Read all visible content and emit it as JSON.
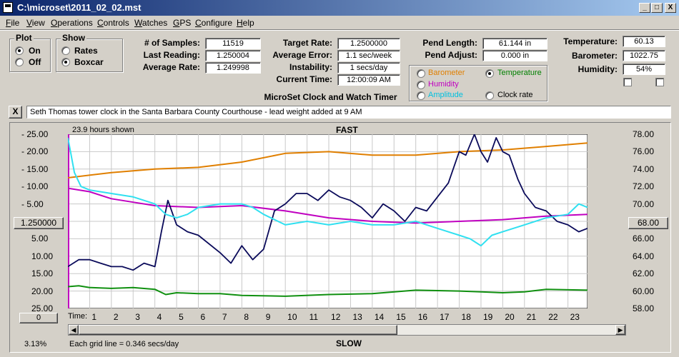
{
  "window": {
    "title": "C:\\microset\\2011_02_02.mst",
    "minimize": "_",
    "maximize": "□",
    "close": "X"
  },
  "menu": [
    "File",
    "View",
    "Operations",
    "Controls",
    "Watches",
    "GPS",
    "Configure",
    "Help"
  ],
  "plot_group": {
    "legend": "Plot",
    "options": [
      "On",
      "Off"
    ],
    "selected": "On"
  },
  "show_group": {
    "legend": "Show",
    "options": [
      "Rates",
      "Boxcar"
    ],
    "selected": "Boxcar"
  },
  "stats": {
    "samples_label": "# of Samples:",
    "samples": "11519",
    "last_label": "Last Reading:",
    "last": "1.250004",
    "avg_rate_label": "Average Rate:",
    "avg_rate": "1.249998"
  },
  "timing": {
    "target_label": "Target Rate:",
    "target": "1.2500000",
    "avg_err_label": "Average Error:",
    "avg_err": "1.1 sec/week",
    "instab_label": "Instability:",
    "instab": "1 secs/day",
    "time_label": "Current Time:",
    "time": "12:00:09 AM"
  },
  "subtitle": "MicroSet Clock and Watch Timer",
  "pendulum": {
    "length_label": "Pend Length:",
    "length": "61.144 in",
    "adjust_label": "Pend Adjust:",
    "adjust": "0.000 in"
  },
  "series_select": {
    "options": [
      {
        "label": "Barometer",
        "color": "#e07f00",
        "checked": false
      },
      {
        "label": "Temperature",
        "color": "#008000",
        "checked": true
      },
      {
        "label": "Humidity",
        "color": "#c000c0",
        "checked": false
      },
      {
        "label": "Clock rate",
        "color": "#000000",
        "checked": false
      },
      {
        "label": "Amplitude",
        "color": "#00c0e0",
        "checked": false
      }
    ]
  },
  "env": {
    "temp_label": "Temperature:",
    "temp": "60.13",
    "baro_label": "Barometer:",
    "baro": "1022.75",
    "hum_label": "Humidity:",
    "hum": "54%"
  },
  "notes_close": "X",
  "notes": "Seth Thomas tower clock in the Santa Barbara County Courthouse - lead weight added at 9 AM",
  "chart": {
    "hours_shown": "23.9 hours shown",
    "top_label": "FAST",
    "bottom_label": "SLOW",
    "center_button": "1.250000",
    "right_button": "68.00",
    "zero_button": "0",
    "left_ticks": [
      "25.00",
      "20.00",
      "15.00",
      "10.00",
      "5.00",
      "5.00",
      "10.00",
      "15.00",
      "20.00",
      "25.00"
    ],
    "right_ticks": [
      "78.00",
      "76.00",
      "74.00",
      "72.00",
      "70.00",
      "66.00",
      "64.00",
      "62.00",
      "60.00",
      "58.00"
    ],
    "time_label": "Time:",
    "x_ticks": [
      "1",
      "2",
      "3",
      "4",
      "5",
      "6",
      "7",
      "8",
      "9",
      "10",
      "11",
      "12",
      "13",
      "14",
      "15",
      "16",
      "17",
      "18",
      "19",
      "20",
      "21",
      "22",
      "23"
    ],
    "percent": "3.13%",
    "grid_note": "Each grid line = 0.346 secs/day"
  },
  "chart_data": {
    "type": "line",
    "x_range": [
      0,
      23.9
    ],
    "y_left": [
      -25,
      25
    ],
    "y_right": [
      58,
      78
    ],
    "grid": true,
    "series": [
      {
        "name": "Barometer",
        "color": "#e07f00",
        "x": [
          0,
          2,
          4,
          6,
          8,
          10,
          12,
          14,
          16,
          18,
          20,
          22,
          23.9
        ],
        "y": [
          12.5,
          14,
          15,
          15.5,
          17,
          19.5,
          20,
          19,
          19,
          20,
          20.5,
          21.5,
          22.5
        ]
      },
      {
        "name": "Temperature",
        "color": "#109010",
        "x": [
          0,
          0.5,
          1,
          2,
          3,
          4,
          4.5,
          5,
          6,
          7,
          8,
          10,
          12,
          14,
          16,
          18,
          19,
          20,
          21,
          22,
          23.9
        ],
        "y": [
          60.5,
          60.6,
          60.4,
          60.3,
          60.4,
          60.2,
          59.6,
          59.8,
          59.7,
          59.7,
          59.5,
          59.4,
          59.6,
          59.7,
          60.1,
          60.0,
          59.9,
          59.8,
          59.9,
          60.2,
          60.1
        ]
      },
      {
        "name": "Humidity",
        "color": "#c000c0",
        "x": [
          0,
          1,
          2,
          3,
          4,
          6,
          8,
          10,
          12,
          14,
          16,
          18,
          20,
          22,
          23.9
        ],
        "y": [
          9.5,
          8.5,
          6.5,
          5.5,
          4.5,
          4,
          4.5,
          3,
          1,
          0,
          -0.5,
          0,
          0.5,
          1.5,
          2
        ]
      },
      {
        "name": "Clock rate",
        "color": "#0a0a5a",
        "x": [
          0,
          0.5,
          1,
          1.5,
          2,
          2.5,
          3,
          3.5,
          4,
          4.3,
          4.6,
          5,
          5.5,
          6,
          7,
          7.5,
          8,
          8.5,
          9,
          9.5,
          10,
          10.5,
          11,
          11.5,
          12,
          12.5,
          13,
          13.5,
          14,
          14.5,
          15,
          15.5,
          16,
          16.5,
          17,
          17.5,
          18,
          18.3,
          18.7,
          19,
          19.3,
          19.7,
          20,
          20.3,
          20.7,
          21,
          21.5,
          22,
          22.5,
          23,
          23.5,
          23.9
        ],
        "y": [
          -13,
          -11,
          -11,
          -12,
          -13,
          -13,
          -14,
          -12,
          -13,
          -3,
          6,
          -1,
          -3,
          -4,
          -9,
          -12,
          -7,
          -11,
          -8,
          3,
          5,
          8,
          8,
          6,
          9,
          7,
          6,
          4,
          1,
          5,
          3,
          0,
          4,
          3,
          7,
          11,
          20,
          19,
          25,
          20,
          17,
          24,
          20,
          19,
          12,
          8,
          4,
          3,
          0,
          -1,
          -3,
          -2
        ]
      },
      {
        "name": "Amplitude",
        "color": "#30e0f0",
        "x": [
          0,
          0.3,
          0.6,
          1,
          2,
          3,
          4,
          4.5,
          5,
          5.5,
          6,
          7,
          8,
          8.5,
          9,
          10,
          11,
          12,
          13,
          14,
          15,
          16,
          17,
          18,
          18.5,
          19,
          19.5,
          20,
          21,
          22,
          23,
          23.5,
          23.9
        ],
        "y": [
          24,
          14,
          10,
          9,
          8,
          7,
          5,
          2,
          1,
          2,
          4,
          5,
          5,
          4,
          2,
          -1,
          0,
          -1,
          0,
          -1,
          -1,
          0,
          -2,
          -4,
          -5,
          -7,
          -4,
          -3,
          -1,
          1,
          2,
          5,
          4
        ]
      }
    ]
  }
}
